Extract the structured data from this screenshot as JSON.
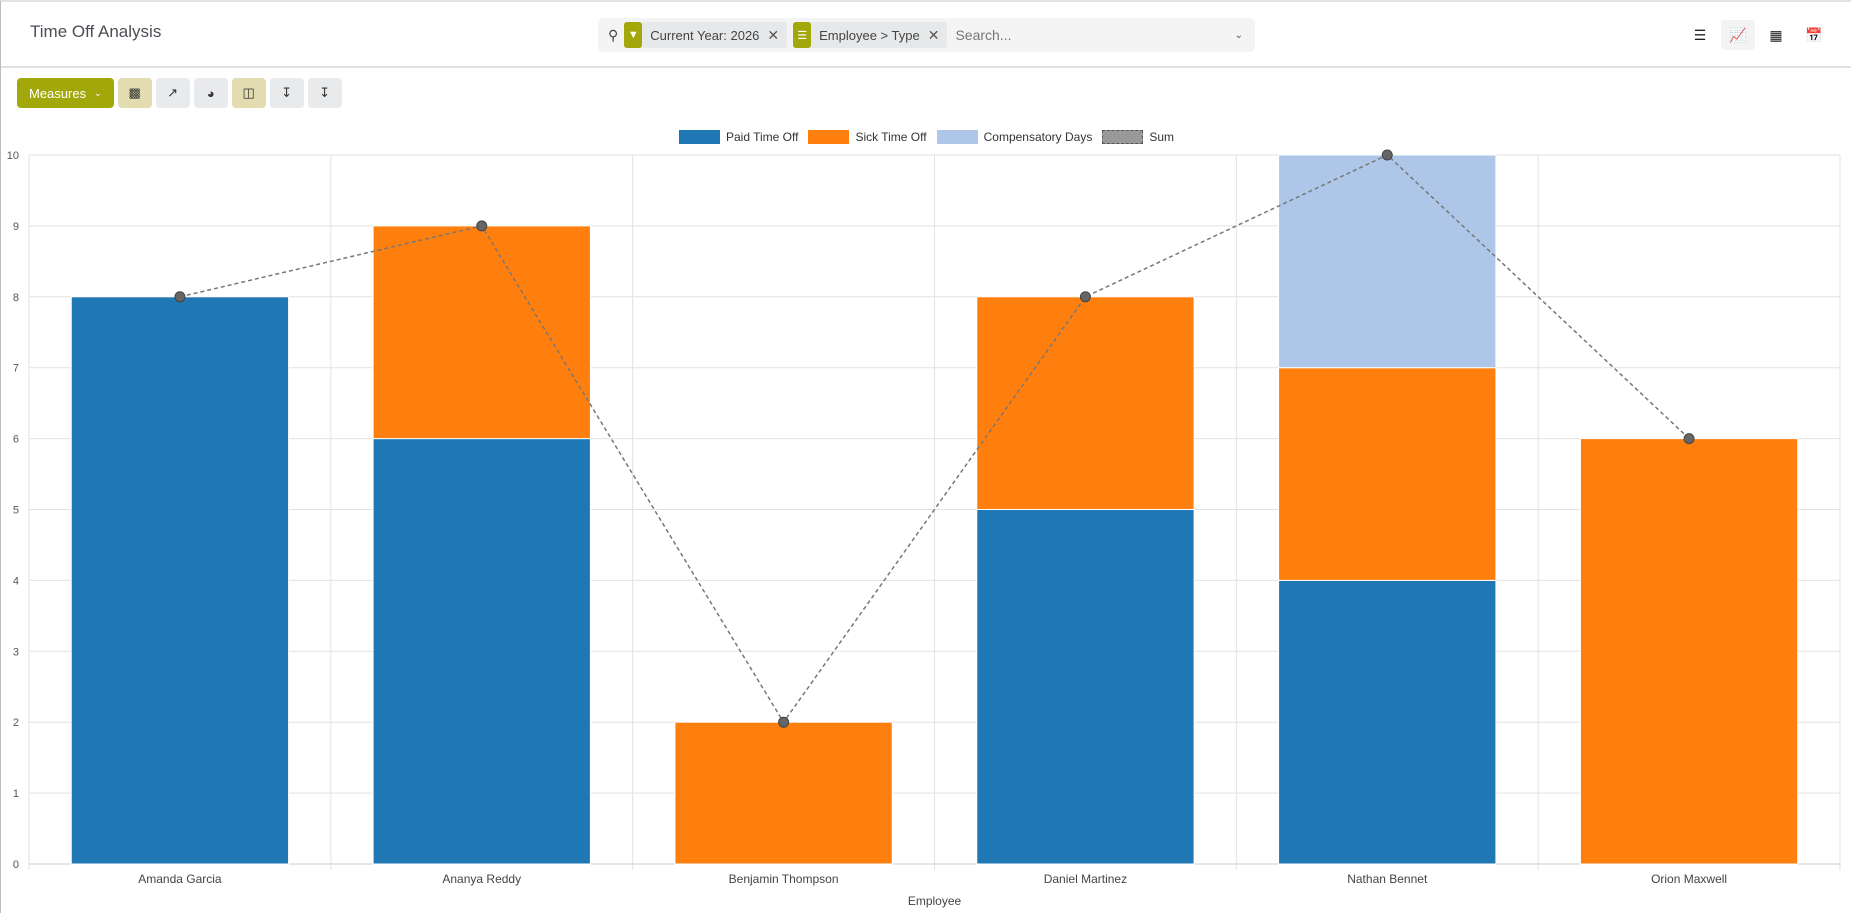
{
  "header": {
    "title": "Time Off Analysis",
    "facets": [
      {
        "icon": "filter-icon",
        "label": "Current Year: 2026"
      },
      {
        "icon": "group-by-icon",
        "label": "Employee > Type"
      }
    ],
    "search_placeholder": "Search..."
  },
  "views": [
    "list-view-icon",
    "graph-view-icon",
    "pivot-view-icon",
    "calendar-view-icon"
  ],
  "toolbar": {
    "measures_label": "Measures"
  },
  "colors": {
    "accent": "#a3a80a",
    "paid": "#1f77b4",
    "sick": "#ff7f0e",
    "comp": "#aec7e8",
    "sum": "#888888"
  },
  "chart_data": {
    "type": "bar",
    "stacked": true,
    "categories": [
      "Amanda Garcia",
      "Ananya Reddy",
      "Benjamin Thompson",
      "Daniel Martinez",
      "Nathan Bennet",
      "Orion Maxwell"
    ],
    "series": [
      {
        "name": "Paid Time Off",
        "values": [
          8,
          6,
          0,
          5,
          4,
          0
        ]
      },
      {
        "name": "Sick Time Off",
        "values": [
          0,
          3,
          2,
          3,
          3,
          6
        ]
      },
      {
        "name": "Compensatory Days",
        "values": [
          0,
          0,
          0,
          0,
          3,
          0
        ]
      }
    ],
    "line_series": {
      "name": "Sum",
      "values": [
        8,
        9,
        2,
        8,
        10,
        6
      ]
    },
    "xlabel": "Employee",
    "ylabel": "",
    "ylim": [
      0,
      10
    ],
    "yticks": [
      0,
      1,
      2,
      3,
      4,
      5,
      6,
      7,
      8,
      9,
      10
    ],
    "grid": true,
    "legend": "top"
  }
}
